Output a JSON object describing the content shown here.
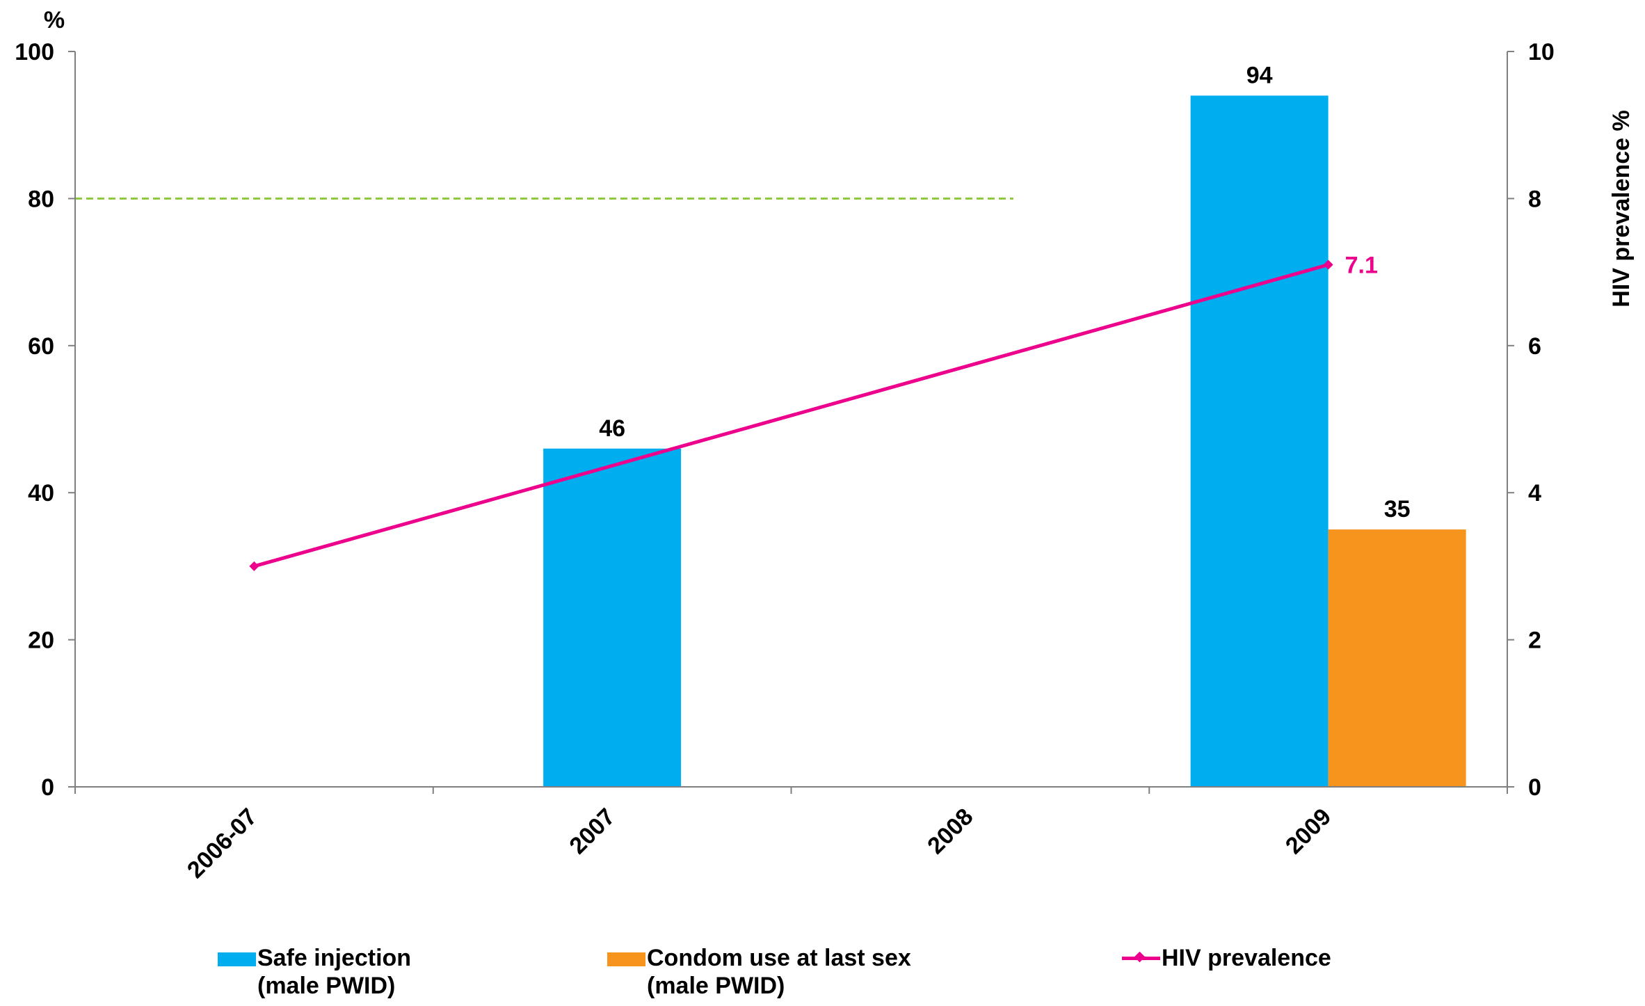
{
  "chart_data": {
    "type": "bar",
    "categories": [
      "2006-07",
      "2007",
      "2008",
      "2009"
    ],
    "series": [
      {
        "name": "Safe injection\n(male PWID)",
        "type": "bar",
        "axis": "left",
        "color": "#00AEEF",
        "values": [
          null,
          46,
          null,
          94
        ],
        "labels": [
          "",
          "46",
          "",
          "94"
        ]
      },
      {
        "name": "Condom use at last sex\n(male PWID)",
        "type": "bar",
        "axis": "left",
        "color": "#F7941D",
        "values": [
          null,
          null,
          null,
          35
        ],
        "labels": [
          "",
          "",
          "",
          "35"
        ]
      },
      {
        "name": "HIV prevalence",
        "type": "line",
        "axis": "right",
        "color": "#EC008C",
        "values": [
          3.0,
          null,
          null,
          7.1
        ],
        "labels": [
          "",
          "",
          "",
          "7.1"
        ]
      }
    ],
    "target_line": {
      "value": 80,
      "from_category": "2006-07",
      "to_category": "2008",
      "color": "#8DC63F",
      "style": "dashed"
    },
    "y_left": {
      "label": "%",
      "range": [
        0,
        100
      ],
      "ticks": [
        "0",
        "20",
        "40",
        "60",
        "80",
        "100"
      ]
    },
    "y_right": {
      "label": "HIV prevalence %",
      "range": [
        0,
        10
      ],
      "ticks": [
        "0",
        "2",
        "4",
        "6",
        "8",
        "10"
      ]
    },
    "grid": false,
    "legend_position": "bottom"
  }
}
